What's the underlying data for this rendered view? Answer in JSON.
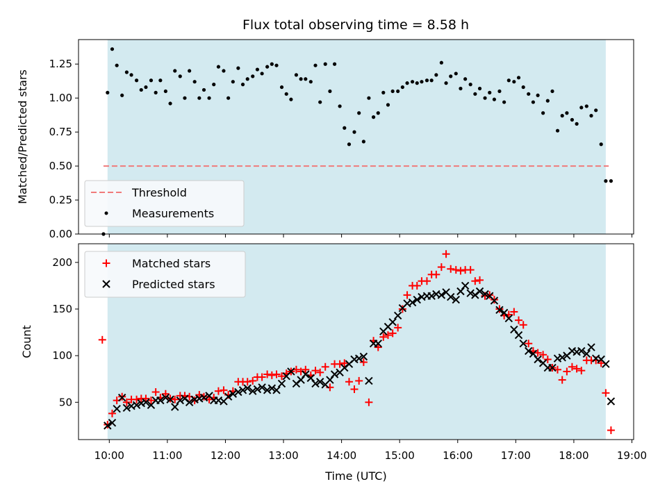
{
  "title": "Flux total observing time = 8.58 h",
  "colors": {
    "background_band": "#d3eaf0",
    "threshold": "#f07a7a",
    "matched": "#ff0000",
    "predicted": "#000000",
    "measurement": "#000000"
  },
  "chart_data": [
    {
      "type": "scatter",
      "panel": "top",
      "ylabel": "Matched/Predicted stars",
      "xlabel": "",
      "xlim": [
        9.47,
        19.03
      ],
      "ylim": [
        0.0,
        1.43
      ],
      "yticks": [
        0.0,
        0.25,
        0.5,
        0.75,
        1.0,
        1.25
      ],
      "ytick_labels": [
        "0.00",
        "0.25",
        "0.50",
        "0.75",
        "1.00",
        "1.25"
      ],
      "xticks": [
        10,
        11,
        12,
        13,
        14,
        15,
        16,
        17,
        18,
        19
      ],
      "observing_window": [
        9.97,
        18.55
      ],
      "threshold": {
        "label": "Threshold",
        "value": 0.5,
        "x_range": [
          9.9,
          18.6
        ]
      },
      "legend": [
        "Threshold",
        "Measurements"
      ],
      "legend_position": "lower-left",
      "series": [
        {
          "name": "Measurements",
          "x": [
            9.9,
            9.97,
            10.05,
            10.13,
            10.22,
            10.3,
            10.38,
            10.47,
            10.55,
            10.63,
            10.72,
            10.8,
            10.88,
            10.97,
            11.05,
            11.13,
            11.22,
            11.3,
            11.38,
            11.47,
            11.55,
            11.63,
            11.72,
            11.8,
            11.88,
            11.97,
            12.05,
            12.13,
            12.22,
            12.3,
            12.38,
            12.47,
            12.55,
            12.63,
            12.72,
            12.8,
            12.88,
            12.97,
            13.05,
            13.13,
            13.22,
            13.3,
            13.38,
            13.47,
            13.55,
            13.63,
            13.72,
            13.8,
            13.88,
            13.97,
            14.05,
            14.13,
            14.22,
            14.3,
            14.38,
            14.47,
            14.55,
            14.63,
            14.72,
            14.8,
            14.88,
            14.97,
            15.05,
            15.13,
            15.22,
            15.3,
            15.38,
            15.47,
            15.55,
            15.63,
            15.72,
            15.8,
            15.88,
            15.97,
            16.05,
            16.13,
            16.22,
            16.3,
            16.38,
            16.47,
            16.55,
            16.63,
            16.72,
            16.8,
            16.88,
            16.97,
            17.05,
            17.13,
            17.22,
            17.3,
            17.38,
            17.47,
            17.55,
            17.63,
            17.72,
            17.8,
            17.88,
            17.97,
            18.05,
            18.13,
            18.22,
            18.3,
            18.38,
            18.47,
            18.55,
            18.64
          ],
          "y": [
            0.0,
            1.04,
            1.36,
            1.24,
            1.02,
            1.19,
            1.17,
            1.13,
            1.06,
            1.08,
            1.13,
            1.04,
            1.13,
            1.05,
            0.96,
            1.2,
            1.16,
            1.0,
            1.2,
            1.12,
            1.0,
            1.06,
            1.0,
            1.1,
            1.23,
            1.2,
            1.0,
            1.12,
            1.22,
            1.1,
            1.14,
            1.16,
            1.21,
            1.18,
            1.23,
            1.25,
            1.24,
            1.08,
            1.03,
            0.99,
            1.17,
            1.14,
            1.14,
            1.12,
            1.24,
            0.97,
            1.25,
            1.05,
            1.25,
            0.94,
            0.78,
            0.66,
            0.75,
            0.89,
            0.68,
            1.0,
            0.86,
            0.89,
            1.04,
            0.95,
            1.05,
            1.05,
            1.08,
            1.11,
            1.12,
            1.11,
            1.12,
            1.13,
            1.13,
            1.17,
            1.26,
            1.11,
            1.16,
            1.18,
            1.07,
            1.14,
            1.1,
            1.03,
            1.07,
            1.0,
            1.04,
            0.99,
            1.05,
            0.97,
            1.13,
            1.12,
            1.15,
            1.08,
            1.03,
            0.97,
            1.02,
            0.89,
            0.98,
            1.05,
            0.76,
            0.87,
            0.89,
            0.84,
            0.81,
            0.93,
            0.94,
            0.87,
            0.91,
            0.66,
            0.39,
            0.39
          ]
        }
      ]
    },
    {
      "type": "scatter",
      "panel": "bottom",
      "ylabel": "Count",
      "xlabel": "Time (UTC)",
      "xlim": [
        9.47,
        19.03
      ],
      "ylim": [
        10,
        220
      ],
      "yticks": [
        50,
        100,
        150,
        200
      ],
      "ytick_labels": [
        "50",
        "100",
        "150",
        "200"
      ],
      "xticks": [
        10,
        11,
        12,
        13,
        14,
        15,
        16,
        17,
        18,
        19
      ],
      "xtick_labels": [
        "10:00",
        "11:00",
        "12:00",
        "13:00",
        "14:00",
        "15:00",
        "16:00",
        "17:00",
        "18:00",
        "19:00"
      ],
      "observing_window": [
        9.97,
        18.55
      ],
      "legend": [
        "Matched stars",
        "Predicted stars"
      ],
      "legend_position": "upper-left",
      "series": [
        {
          "name": "Matched stars",
          "marker": "plus",
          "x": [
            9.88,
            9.97,
            10.05,
            10.13,
            10.22,
            10.3,
            10.38,
            10.47,
            10.55,
            10.63,
            10.72,
            10.8,
            10.88,
            10.97,
            11.05,
            11.13,
            11.22,
            11.3,
            11.38,
            11.47,
            11.55,
            11.63,
            11.72,
            11.8,
            11.88,
            11.97,
            12.05,
            12.13,
            12.22,
            12.3,
            12.38,
            12.47,
            12.55,
            12.63,
            12.72,
            12.8,
            12.88,
            12.97,
            13.05,
            13.13,
            13.22,
            13.3,
            13.38,
            13.47,
            13.55,
            13.63,
            13.72,
            13.8,
            13.88,
            13.97,
            14.05,
            14.13,
            14.22,
            14.3,
            14.38,
            14.47,
            14.55,
            14.63,
            14.72,
            14.8,
            14.88,
            14.97,
            15.05,
            15.13,
            15.22,
            15.3,
            15.38,
            15.47,
            15.55,
            15.63,
            15.72,
            15.8,
            15.88,
            15.97,
            16.05,
            16.13,
            16.22,
            16.3,
            16.38,
            16.47,
            16.55,
            16.63,
            16.72,
            16.8,
            16.88,
            16.97,
            17.05,
            17.13,
            17.22,
            17.3,
            17.38,
            17.47,
            17.55,
            17.63,
            17.72,
            17.8,
            17.88,
            17.97,
            18.05,
            18.13,
            18.22,
            18.3,
            18.38,
            18.47,
            18.55,
            18.64
          ],
          "y": [
            117,
            26,
            38,
            52,
            56,
            50,
            53,
            53,
            54,
            54,
            52,
            61,
            55,
            59,
            54,
            53,
            57,
            57,
            56,
            52,
            58,
            56,
            53,
            55,
            62,
            63,
            58,
            62,
            72,
            72,
            72,
            73,
            77,
            77,
            80,
            79,
            80,
            78,
            81,
            83,
            85,
            83,
            85,
            79,
            84,
            82,
            88,
            66,
            91,
            91,
            92,
            72,
            64,
            73,
            93,
            50,
            116,
            109,
            120,
            122,
            124,
            130,
            150,
            165,
            175,
            175,
            180,
            180,
            187,
            187,
            195,
            209,
            193,
            192,
            191,
            192,
            192,
            180,
            181,
            164,
            165,
            160,
            150,
            143,
            144,
            147,
            138,
            133,
            113,
            105,
            103,
            101,
            96,
            87,
            85,
            74,
            83,
            88,
            86,
            84,
            95,
            95,
            95,
            92,
            60,
            20
          ]
        },
        {
          "name": "Predicted stars",
          "marker": "x",
          "x": [
            9.97,
            10.05,
            10.13,
            10.22,
            10.3,
            10.38,
            10.47,
            10.55,
            10.63,
            10.72,
            10.8,
            10.88,
            10.97,
            11.05,
            11.13,
            11.22,
            11.3,
            11.38,
            11.47,
            11.55,
            11.63,
            11.72,
            11.8,
            11.88,
            11.97,
            12.05,
            12.13,
            12.22,
            12.3,
            12.38,
            12.47,
            12.55,
            12.63,
            12.72,
            12.8,
            12.88,
            12.97,
            13.05,
            13.13,
            13.22,
            13.3,
            13.38,
            13.47,
            13.55,
            13.63,
            13.72,
            13.8,
            13.88,
            13.97,
            14.05,
            14.13,
            14.22,
            14.3,
            14.38,
            14.47,
            14.55,
            14.63,
            14.72,
            14.8,
            14.88,
            14.97,
            15.05,
            15.13,
            15.22,
            15.3,
            15.38,
            15.47,
            15.55,
            15.63,
            15.72,
            15.8,
            15.88,
            15.97,
            16.05,
            16.13,
            16.22,
            16.3,
            16.38,
            16.47,
            16.55,
            16.63,
            16.72,
            16.8,
            16.88,
            16.97,
            17.05,
            17.13,
            17.22,
            17.3,
            17.38,
            17.47,
            17.55,
            17.63,
            17.72,
            17.8,
            17.88,
            17.97,
            18.05,
            18.13,
            18.22,
            18.3,
            18.38,
            18.47,
            18.55,
            18.64
          ],
          "y": [
            25,
            28,
            43,
            55,
            44,
            46,
            47,
            49,
            50,
            47,
            52,
            52,
            55,
            53,
            45,
            52,
            54,
            50,
            53,
            54,
            55,
            57,
            52,
            52,
            51,
            56,
            59,
            61,
            63,
            65,
            62,
            64,
            66,
            63,
            65,
            63,
            70,
            78,
            83,
            70,
            74,
            80,
            76,
            70,
            72,
            69,
            74,
            80,
            82,
            87,
            91,
            96,
            97,
            99,
            73,
            113,
            113,
            126,
            131,
            136,
            143,
            151,
            156,
            157,
            160,
            163,
            164,
            164,
            166,
            165,
            168,
            163,
            160,
            169,
            175,
            167,
            165,
            169,
            166,
            164,
            159,
            149,
            146,
            140,
            128,
            122,
            113,
            105,
            102,
            96,
            92,
            87,
            87,
            97,
            98,
            100,
            105,
            104,
            105,
            102,
            109,
            97,
            96,
            91,
            51
          ]
        }
      ]
    }
  ]
}
